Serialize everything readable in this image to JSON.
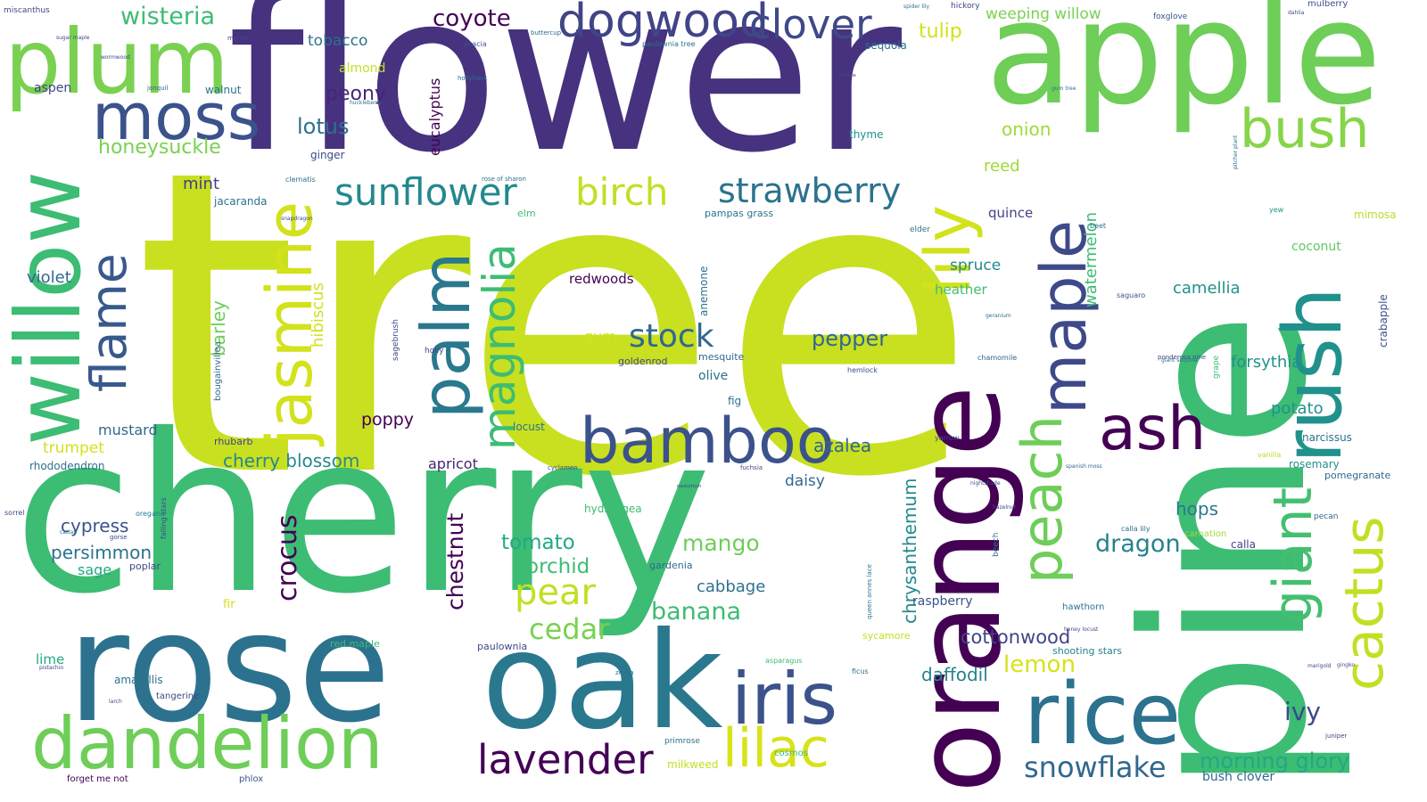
{
  "words": [
    {
      "text": "tree",
      "color": "#c8e020"
    },
    {
      "text": "flower",
      "color": "#46327e"
    },
    {
      "text": "pine",
      "color": "#3dbc74"
    },
    {
      "text": "cherry",
      "color": "#3dbc74"
    },
    {
      "text": "rose",
      "color": "#2c728e"
    },
    {
      "text": "apple",
      "color": "#6ece58"
    },
    {
      "text": "orange",
      "color": "#440154"
    },
    {
      "text": "oak",
      "color": "#2a788e"
    },
    {
      "text": "plum",
      "color": "#7ad151"
    },
    {
      "text": "willow",
      "color": "#3dbc74"
    },
    {
      "text": "moss",
      "color": "#3b528b"
    },
    {
      "text": "rush",
      "color": "#21918c"
    },
    {
      "text": "rice",
      "color": "#2c728e"
    },
    {
      "text": "dandelion",
      "color": "#6ece58"
    },
    {
      "text": "bamboo",
      "color": "#3b528b"
    },
    {
      "text": "maple",
      "color": "#3e4989"
    },
    {
      "text": "iris",
      "color": "#3b528b"
    },
    {
      "text": "palm",
      "color": "#2a788e"
    },
    {
      "text": "jasmine",
      "color": "#d2e21b"
    },
    {
      "text": "dogwood",
      "color": "#414487"
    },
    {
      "text": "clover",
      "color": "#3e4989"
    },
    {
      "text": "bush",
      "color": "#86d549"
    },
    {
      "text": "lily",
      "color": "#d2e21b"
    },
    {
      "text": "cactus",
      "color": "#c2df23"
    },
    {
      "text": "peach",
      "color": "#6ece58"
    },
    {
      "text": "ash",
      "color": "#440154"
    },
    {
      "text": "flame",
      "color": "#38598c"
    },
    {
      "text": "giant",
      "color": "#44bf70"
    },
    {
      "text": "lilac",
      "color": "#d8e219"
    },
    {
      "text": "lavender",
      "color": "#440154"
    },
    {
      "text": "magnolia",
      "color": "#3dbc74"
    },
    {
      "text": "sunflower",
      "color": "#23898e"
    },
    {
      "text": "strawberry",
      "color": "#2c728e"
    },
    {
      "text": "birch",
      "color": "#c2df23"
    },
    {
      "text": "wisteria",
      "color": "#3dbc74"
    },
    {
      "text": "stock",
      "color": "#31688e"
    },
    {
      "text": "snowflake",
      "color": "#31688e"
    },
    {
      "text": "pear",
      "color": "#c2df23"
    },
    {
      "text": "coyote",
      "color": "#440154"
    },
    {
      "text": "peony",
      "color": "#482576"
    },
    {
      "text": "lotus",
      "color": "#2c728e"
    },
    {
      "text": "honeysuckle",
      "color": "#7ad151"
    },
    {
      "text": "tobacco",
      "color": "#2c728e"
    },
    {
      "text": "tulip",
      "color": "#d2e21b"
    },
    {
      "text": "weeping willow",
      "color": "#7ad151"
    },
    {
      "text": "onion",
      "color": "#a0da39"
    },
    {
      "text": "reed",
      "color": "#a0da39"
    },
    {
      "text": "almond",
      "color": "#c2df23"
    },
    {
      "text": "aspen",
      "color": "#414487"
    },
    {
      "text": "walnut",
      "color": "#2c728e"
    },
    {
      "text": "ginger",
      "color": "#3e4989"
    },
    {
      "text": "eucalyptus",
      "color": "#440154"
    },
    {
      "text": "mint",
      "color": "#433e85"
    },
    {
      "text": "jacaranda",
      "color": "#2c728e"
    },
    {
      "text": "elm",
      "color": "#3dbc74"
    },
    {
      "text": "pampas grass",
      "color": "#2c728e"
    },
    {
      "text": "quince",
      "color": "#414487"
    },
    {
      "text": "spruce",
      "color": "#23898e"
    },
    {
      "text": "heather",
      "color": "#3dbc74"
    },
    {
      "text": "watermelon",
      "color": "#3dbc74"
    },
    {
      "text": "camellia",
      "color": "#21918c"
    },
    {
      "text": "coconut",
      "color": "#5ec962"
    },
    {
      "text": "mimosa",
      "color": "#b5de2b"
    },
    {
      "text": "forsythia",
      "color": "#21918c"
    },
    {
      "text": "violet",
      "color": "#31688e"
    },
    {
      "text": "barley",
      "color": "#6ece58"
    },
    {
      "text": "hibiscus",
      "color": "#d2e21b"
    },
    {
      "text": "redwoods",
      "color": "#440154"
    },
    {
      "text": "anemone",
      "color": "#2c728e"
    },
    {
      "text": "pepper",
      "color": "#31688e"
    },
    {
      "text": "gum",
      "color": "#d2e21b"
    },
    {
      "text": "goldenrod",
      "color": "#3e4989"
    },
    {
      "text": "mesquite",
      "color": "#31688e"
    },
    {
      "text": "olive",
      "color": "#2c728e"
    },
    {
      "text": "fig",
      "color": "#2c728e"
    },
    {
      "text": "potato",
      "color": "#21918c"
    },
    {
      "text": "narcissus",
      "color": "#2c728e"
    },
    {
      "text": "crabapple",
      "color": "#3b528b"
    },
    {
      "text": "mustard",
      "color": "#31688e"
    },
    {
      "text": "trumpet",
      "color": "#d2e21b"
    },
    {
      "text": "rhododendron",
      "color": "#2c728e"
    },
    {
      "text": "rhubarb",
      "color": "#414487"
    },
    {
      "text": "poppy",
      "color": "#440154"
    },
    {
      "text": "locust",
      "color": "#2c728e"
    },
    {
      "text": "azalea",
      "color": "#31688e"
    },
    {
      "text": "cherry blossom",
      "color": "#23898e"
    },
    {
      "text": "apricot",
      "color": "#482576"
    },
    {
      "text": "daisy",
      "color": "#31688e"
    },
    {
      "text": "chrysanthemum",
      "color": "#23898e"
    },
    {
      "text": "crocus",
      "color": "#440154"
    },
    {
      "text": "chestnut",
      "color": "#440154"
    },
    {
      "text": "rosemary",
      "color": "#21918c"
    },
    {
      "text": "pomegranate",
      "color": "#31688e"
    },
    {
      "text": "hops",
      "color": "#2a788e"
    },
    {
      "text": "dragon",
      "color": "#26828e"
    },
    {
      "text": "cypress",
      "color": "#3b528b"
    },
    {
      "text": "persimmon",
      "color": "#2c728e"
    },
    {
      "text": "sage",
      "color": "#22a884"
    },
    {
      "text": "poplar",
      "color": "#3e4989"
    },
    {
      "text": "tomato",
      "color": "#22a884"
    },
    {
      "text": "orchid",
      "color": "#3dbc74"
    },
    {
      "text": "mango",
      "color": "#6ece58"
    },
    {
      "text": "hydrangea",
      "color": "#3dbc74"
    },
    {
      "text": "cabbage",
      "color": "#2c728e"
    },
    {
      "text": "gardenia",
      "color": "#31688e"
    },
    {
      "text": "banana",
      "color": "#3dbc74"
    },
    {
      "text": "cedar",
      "color": "#7ad151"
    },
    {
      "text": "fir",
      "color": "#d2e21b"
    },
    {
      "text": "paulownia",
      "color": "#3e4989"
    },
    {
      "text": "red maple",
      "color": "#3dbc74"
    },
    {
      "text": "raspberry",
      "color": "#3b528b"
    },
    {
      "text": "cottonwood",
      "color": "#414487"
    },
    {
      "text": "daffodil",
      "color": "#26828e"
    },
    {
      "text": "lemon",
      "color": "#d8e219"
    },
    {
      "text": "sycamore",
      "color": "#c2df23"
    },
    {
      "text": "ivy",
      "color": "#3e4989"
    },
    {
      "text": "lime",
      "color": "#22a884"
    },
    {
      "text": "amaryllis",
      "color": "#2c728e"
    },
    {
      "text": "tangerine",
      "color": "#3e4989"
    },
    {
      "text": "morning glory",
      "color": "#22a884"
    },
    {
      "text": "bush clover",
      "color": "#31688e"
    },
    {
      "text": "shooting stars",
      "color": "#26828e"
    },
    {
      "text": "milkweed",
      "color": "#c2df23"
    },
    {
      "text": "cosmos",
      "color": "#3dbc74"
    },
    {
      "text": "hawthorn",
      "color": "#2c728e"
    },
    {
      "text": "calla",
      "color": "#414487"
    },
    {
      "text": "carnation",
      "color": "#a0da39"
    },
    {
      "text": "bougainvillea",
      "color": "#31688e"
    },
    {
      "text": "sagebrush",
      "color": "#3e4989"
    },
    {
      "text": "holly",
      "color": "#3e4989"
    },
    {
      "text": "forget me not",
      "color": "#440154"
    },
    {
      "text": "phlox",
      "color": "#3b528b"
    },
    {
      "text": "primrose",
      "color": "#2c728e"
    },
    {
      "text": "oregano",
      "color": "#2a788e"
    },
    {
      "text": "falling stars",
      "color": "#3e4989"
    },
    {
      "text": "mulberry",
      "color": "#3b528b"
    },
    {
      "text": "foxglove",
      "color": "#3b528b"
    },
    {
      "text": "hickory",
      "color": "#3e4989"
    },
    {
      "text": "sequoia",
      "color": "#2c728e"
    },
    {
      "text": "thyme",
      "color": "#21918c"
    },
    {
      "text": "elder",
      "color": "#2c728e"
    },
    {
      "text": "yew",
      "color": "#21918c"
    },
    {
      "text": "beet",
      "color": "#2c728e"
    },
    {
      "text": "saguaro",
      "color": "#3b528b"
    },
    {
      "text": "hemlock",
      "color": "#3e4989"
    },
    {
      "text": "chamomile",
      "color": "#31688e"
    },
    {
      "text": "yarrow",
      "color": "#3e4989"
    },
    {
      "text": "grape",
      "color": "#3dbc74"
    },
    {
      "text": "vanilla",
      "color": "#b5de2b"
    },
    {
      "text": "beech",
      "color": "#2c728e"
    },
    {
      "text": "pecan",
      "color": "#31688e"
    },
    {
      "text": "sorrel",
      "color": "#3e4989"
    },
    {
      "text": "miscanthus",
      "color": "#3e4989"
    },
    {
      "text": "acacia",
      "color": "#3b528b"
    },
    {
      "text": "jonquil",
      "color": "#31688e"
    },
    {
      "text": "myrtle",
      "color": "#3e4989"
    },
    {
      "text": "buttercup",
      "color": "#31688e"
    },
    {
      "text": "hollyhock",
      "color": "#2c728e"
    },
    {
      "text": "paulownia tree",
      "color": "#2c728e"
    },
    {
      "text": "rose of sharon",
      "color": "#2c728e"
    },
    {
      "text": "clematis",
      "color": "#2c728e"
    },
    {
      "text": "snapdragon",
      "color": "#3e4989"
    },
    {
      "text": "cyclamen",
      "color": "#3e4989"
    },
    {
      "text": "fuchsia",
      "color": "#3e4989"
    },
    {
      "text": "zinnia",
      "color": "#2c728e"
    },
    {
      "text": "ficus",
      "color": "#2c728e"
    },
    {
      "text": "calla lily",
      "color": "#31688e"
    },
    {
      "text": "nightshade",
      "color": "#3e4989"
    },
    {
      "text": "hazelnut",
      "color": "#3e4989"
    },
    {
      "text": "geranium",
      "color": "#31688e"
    },
    {
      "text": "spanish moss",
      "color": "#31688e"
    },
    {
      "text": "ponderosa pine",
      "color": "#3e4989"
    },
    {
      "text": "giant sequoia",
      "color": "#2c728e"
    },
    {
      "text": "pitcher plant",
      "color": "#2c728e"
    },
    {
      "text": "honey locust",
      "color": "#3e4989"
    },
    {
      "text": "queen annes lace",
      "color": "#2c728e"
    },
    {
      "text": "asparagus",
      "color": "#3dbc74"
    },
    {
      "text": "gorse",
      "color": "#3e4989"
    },
    {
      "text": "juniper",
      "color": "#3e4989"
    },
    {
      "text": "larch",
      "color": "#3e4989"
    },
    {
      "text": "spider lily",
      "color": "#2c728e"
    },
    {
      "text": "gum tree",
      "color": "#2c728e"
    },
    {
      "text": "daphne",
      "color": "#3e4989"
    },
    {
      "text": "huckleberry",
      "color": "#2c728e"
    },
    {
      "text": "sugar maple",
      "color": "#3e4989"
    },
    {
      "text": "cattail",
      "color": "#2c728e"
    },
    {
      "text": "pistachio",
      "color": "#3e4989"
    },
    {
      "text": "nasturtium",
      "color": "#3e4989"
    },
    {
      "text": "wormwood",
      "color": "#3e4989"
    },
    {
      "text": "dahlia",
      "color": "#3e4989"
    },
    {
      "text": "marigold",
      "color": "#3e4989"
    },
    {
      "text": "gingko",
      "color": "#3e4989"
    }
  ]
}
